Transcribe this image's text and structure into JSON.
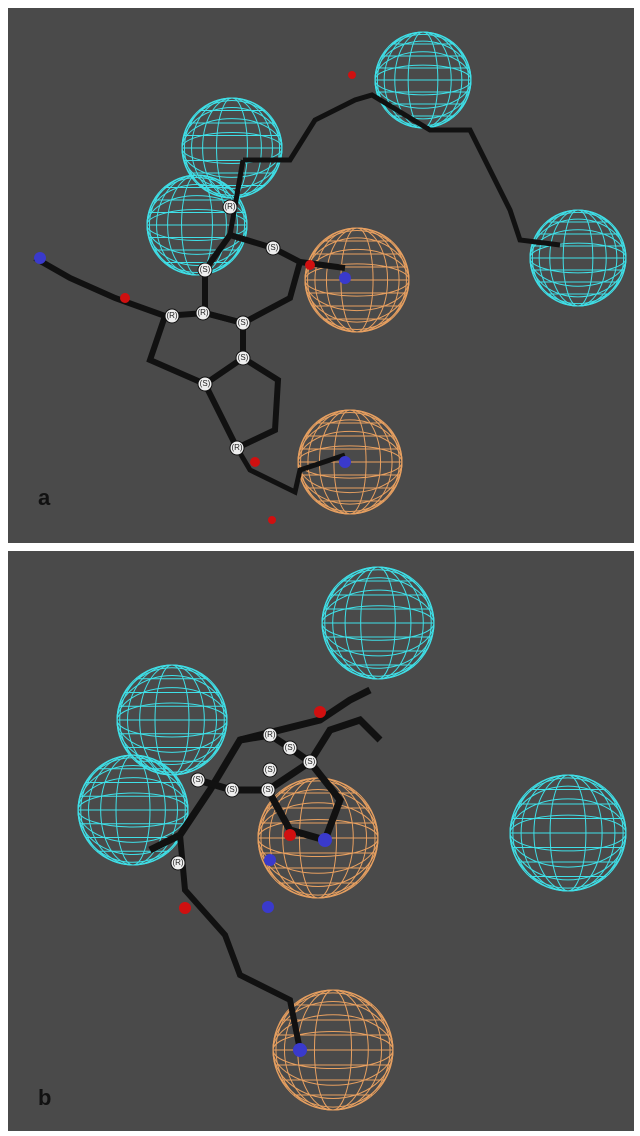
{
  "panels": [
    {
      "label": "a",
      "stereo_labels": [
        "(S)",
        "(R)",
        "(R)",
        "(S)",
        "(S)",
        "(S)",
        "(R)",
        "(S)",
        "(R)"
      ]
    },
    {
      "label": "b",
      "stereo_labels": [
        "(R)",
        "(S)",
        "(S)",
        "(S)",
        "(S)",
        "(S)",
        "(S)",
        "(R)"
      ]
    }
  ]
}
